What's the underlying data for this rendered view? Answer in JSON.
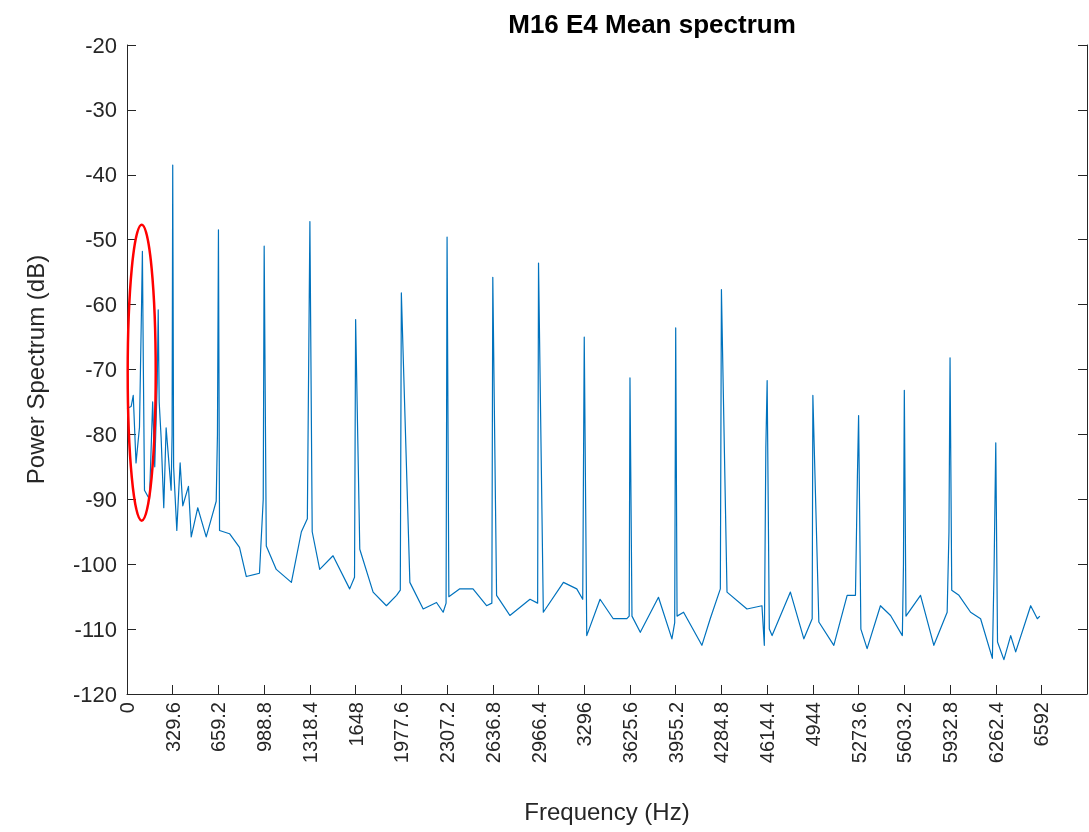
{
  "chart_data": {
    "type": "line",
    "title": "M16 E4 Mean spectrum",
    "xlabel": "Frequency (Hz)",
    "ylabel": "Power Spectrum (dB)",
    "xlim": [
      0,
      6920
    ],
    "ylim": [
      -120,
      -20
    ],
    "xticks": [
      0,
      329.6,
      659.2,
      988.8,
      1318.4,
      1648,
      1977.6,
      2307.2,
      2636.8,
      2966.4,
      3296,
      3625.6,
      3955.2,
      4284.8,
      4614.4,
      4944,
      5273.6,
      5603.2,
      5932.8,
      6262.4,
      6592
    ],
    "yticks": [
      -120,
      -110,
      -100,
      -90,
      -80,
      -70,
      -60,
      -50,
      -40,
      -30,
      -20
    ],
    "grid": false,
    "marker": "none",
    "line_style": "solid",
    "series": [
      {
        "color": "#0072bd",
        "x": [
          0,
          30,
          45,
          65,
          90,
          105,
          111,
          118,
          126,
          162,
          185,
          200,
          218,
          225,
          232,
          246,
          265,
          282,
          318,
          325,
          329.6,
          336,
          359,
          383,
          402,
          443,
          463,
          510,
          571,
          643,
          652,
          659.2,
          667,
          739,
          811,
          860,
          955,
          982,
          988.8,
          1004,
          1076,
          1185,
          1257,
          1300,
          1318.4,
          1335,
          1389,
          1485,
          1605,
          1640,
          1648,
          1678,
          1774,
          1870,
          1943,
          1970,
          1977.6,
          2039,
          2135,
          2231,
          2279,
          2300,
          2307.2,
          2320,
          2399,
          2494,
          2592,
          2630,
          2636.8,
          2664,
          2760,
          2905,
          2960,
          2966.4,
          3001,
          3146,
          3242,
          3285,
          3296,
          3314,
          3410,
          3505,
          3603,
          3620,
          3625.6,
          3640,
          3700,
          3831,
          3928,
          3948,
          3955.2,
          3965,
          4012,
          4144,
          4204,
          4277,
          4284.8,
          4325,
          4469,
          4577,
          4594,
          4605,
          4614.4,
          4630,
          4650,
          4782,
          4879,
          4939,
          4944,
          4987,
          5095,
          5191,
          5251,
          5265,
          5273.6,
          5290,
          5335,
          5431,
          5504,
          5589,
          5597,
          5603.2,
          5615,
          5720,
          5816,
          5912,
          5925,
          5932.8,
          5945,
          5997,
          6081,
          6153,
          6238,
          6250,
          6262.4,
          6275,
          6321,
          6370,
          6406,
          6514,
          6562,
          6580
        ],
        "values": [
          -76,
          -75.7,
          -74,
          -84.4,
          -78.9,
          -60,
          -51.8,
          -70,
          -88.6,
          -90,
          -75,
          -85,
          -72,
          -60.8,
          -75,
          -80.5,
          -91.3,
          -79,
          -88.6,
          -80,
          -38.5,
          -85,
          -94.8,
          -84.4,
          -91,
          -88,
          -95.8,
          -91.3,
          -95.8,
          -90.3,
          -80,
          -48.5,
          -94.8,
          -95.3,
          -97.4,
          -101.9,
          -101.4,
          -90,
          -51,
          -97.2,
          -100.8,
          -102.8,
          -95,
          -93,
          -47.2,
          -95,
          -100.8,
          -98.7,
          -103.8,
          -102,
          -62.3,
          -97.7,
          -104.3,
          -106.4,
          -104.8,
          -104,
          -58.2,
          -102.8,
          -106.9,
          -105.9,
          -107.4,
          -106,
          -49.6,
          -105,
          -103.8,
          -103.8,
          -106.4,
          -106,
          -55.8,
          -104.8,
          -107.9,
          -105.4,
          -106,
          -53.6,
          -107.4,
          -102.8,
          -103.8,
          -105.4,
          -65,
          -111,
          -105.4,
          -108.4,
          -108.4,
          -108,
          -71.3,
          -108,
          -110.5,
          -105.1,
          -111.5,
          -109,
          -63.6,
          -108,
          -107.4,
          -112.5,
          -108.4,
          -103.8,
          -57.7,
          -104.3,
          -106.9,
          -106.4,
          -112.5,
          -82,
          -71.7,
          -110,
          -111,
          -104.3,
          -111.5,
          -108.4,
          -74,
          -108.9,
          -112.5,
          -104.8,
          -104.8,
          -86.5,
          -77.1,
          -110,
          -113,
          -106.4,
          -107.9,
          -111,
          -100,
          -73.2,
          -108,
          -104.8,
          -112.5,
          -107.4,
          -95,
          -68.2,
          -104,
          -104.8,
          -107.4,
          -108.4,
          -114.5,
          -101,
          -81.3,
          -112,
          -114.7,
          -111,
          -113.5,
          -106.4,
          -108.4,
          -108
        ]
      }
    ]
  }
}
